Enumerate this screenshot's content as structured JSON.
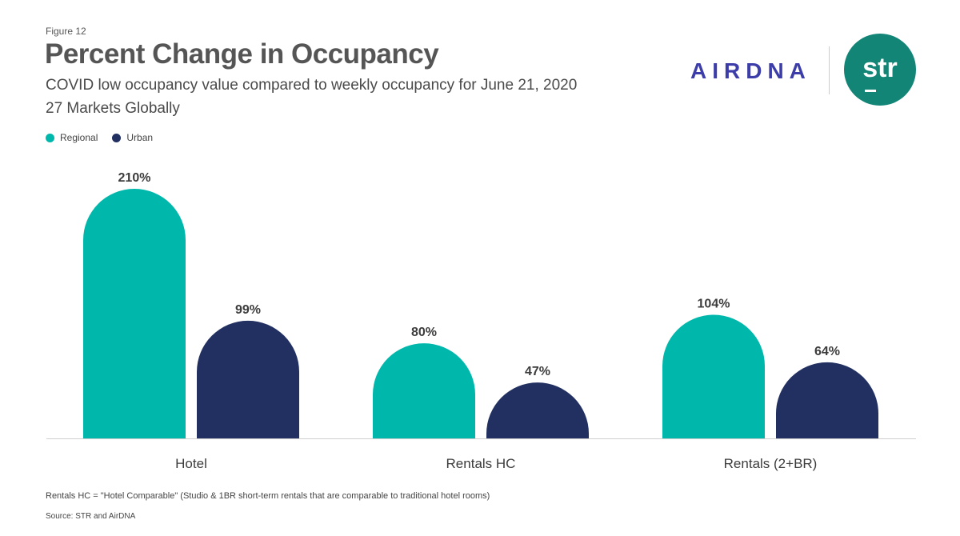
{
  "header": {
    "figure_label": "Figure 12",
    "title": "Percent Change in Occupancy",
    "subtitle_line1": "COVID low occupancy value compared to weekly occupancy for June 21, 2020",
    "subtitle_line2": "27 Markets Globally"
  },
  "logos": {
    "airdna": "AIRDNA",
    "str": "str",
    "airdna_color": "#3c3da8",
    "str_color": "#138577"
  },
  "chart_data": {
    "type": "bar",
    "categories": [
      "Hotel",
      "Rentals HC",
      "Rentals (2+BR)"
    ],
    "series": [
      {
        "name": "Regional",
        "color": "#00b7ab",
        "values": [
          210,
          80,
          104
        ],
        "labels": [
          "210%",
          "80%",
          "104%"
        ]
      },
      {
        "name": "Urban",
        "color": "#213061",
        "values": [
          99,
          47,
          64
        ],
        "labels": [
          "99%",
          "47%",
          "64%"
        ]
      }
    ],
    "unit": "%",
    "ylim": [
      0,
      210
    ],
    "grid": false,
    "legend_position": "top-left"
  },
  "footer": {
    "footnote": "Rentals HC = \"Hotel Comparable\" (Studio & 1BR short-term rentals that are comparable to traditional hotel rooms)",
    "source": "Source: STR and AirDNA"
  }
}
